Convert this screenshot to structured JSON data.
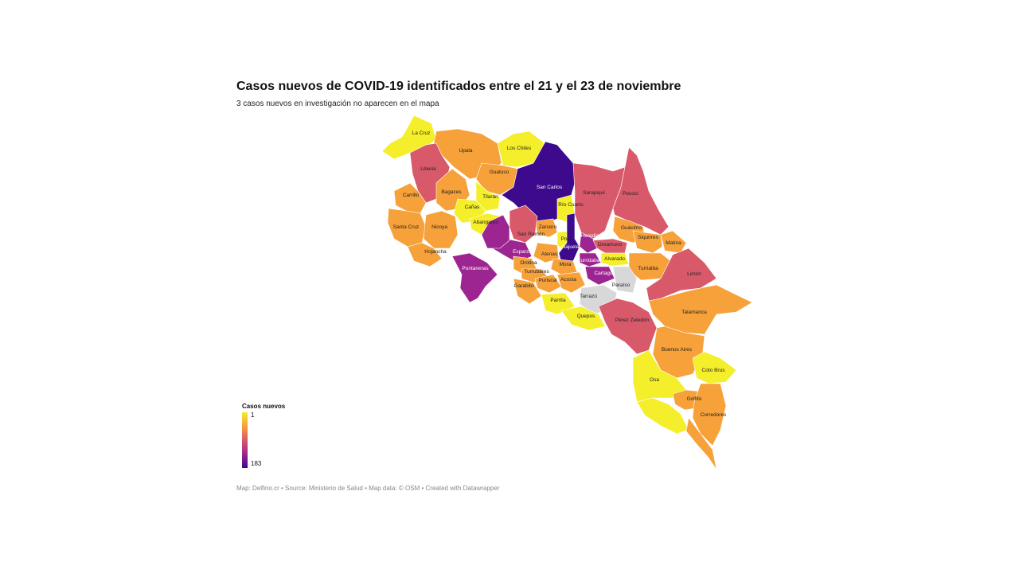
{
  "title": "Casos nuevos de COVID-19 identificados entre el 21 y el 23 de noviembre",
  "subtitle": "3 casos nuevos en investigación no aparecen en el mapa",
  "legend": {
    "title": "Casos nuevos",
    "min": "1",
    "max": "183"
  },
  "footer": "Map: Delfino.cr • Source: Ministerio de Salud • Map data: © OSM • Created with Datawrapper",
  "colors": {
    "low": "#f5ee2a",
    "mid": "#f6a13a",
    "high": "#d85a6a",
    "higher": "#9d2591",
    "max": "#3d0a8e",
    "nodata": "#d8d8d8"
  },
  "cantons": [
    {
      "name": "La Cruz",
      "level": "low"
    },
    {
      "name": "Upala",
      "level": "mid"
    },
    {
      "name": "Los Chiles",
      "level": "low"
    },
    {
      "name": "Liberia",
      "level": "high"
    },
    {
      "name": "Guatuso",
      "level": "mid"
    },
    {
      "name": "San Carlos",
      "level": "max"
    },
    {
      "name": "Sarapiquí",
      "level": "high"
    },
    {
      "name": "Pococí",
      "level": "high"
    },
    {
      "name": "Carrillo",
      "level": "mid"
    },
    {
      "name": "Bagaces",
      "level": "mid"
    },
    {
      "name": "Tilarán",
      "level": "low"
    },
    {
      "name": "Cañas",
      "level": "low"
    },
    {
      "name": "Río Cuarto",
      "level": "low"
    },
    {
      "name": "Santa Cruz",
      "level": "mid"
    },
    {
      "name": "Nicoya",
      "level": "mid"
    },
    {
      "name": "Abangares",
      "level": "low"
    },
    {
      "name": "Zarcero",
      "level": "mid"
    },
    {
      "name": "San Ramón",
      "level": "high"
    },
    {
      "name": "Guácimo",
      "level": "mid"
    },
    {
      "name": "Siquirres",
      "level": "mid"
    },
    {
      "name": "Matina",
      "level": "mid"
    },
    {
      "name": "Heredia",
      "level": "higher"
    },
    {
      "name": "Poás",
      "level": "low"
    },
    {
      "name": "Oreamuno",
      "level": "high"
    },
    {
      "name": "Hojancha",
      "level": "mid"
    },
    {
      "name": "Esparza",
      "level": "higher"
    },
    {
      "name": "Atenas",
      "level": "mid"
    },
    {
      "name": "Alajuela",
      "level": "max"
    },
    {
      "name": "Curridabat",
      "level": "higher"
    },
    {
      "name": "Alvarado",
      "level": "low"
    },
    {
      "name": "Turrialba",
      "level": "mid"
    },
    {
      "name": "Orotina",
      "level": "mid"
    },
    {
      "name": "Mora",
      "level": "mid"
    },
    {
      "name": "Puntarenas",
      "level": "higher"
    },
    {
      "name": "Turrubares",
      "level": "mid"
    },
    {
      "name": "Cartago",
      "level": "higher"
    },
    {
      "name": "Paraíso",
      "level": "nodata"
    },
    {
      "name": "Limón",
      "level": "high"
    },
    {
      "name": "Puriscal",
      "level": "mid"
    },
    {
      "name": "Acosta",
      "level": "mid"
    },
    {
      "name": "Garabito",
      "level": "mid"
    },
    {
      "name": "Tarrazú",
      "level": "nodata"
    },
    {
      "name": "Parrita",
      "level": "low"
    },
    {
      "name": "Talamanca",
      "level": "mid"
    },
    {
      "name": "Quepos",
      "level": "low"
    },
    {
      "name": "Pérez Zeledón",
      "level": "high"
    },
    {
      "name": "Buenos Aires",
      "level": "mid"
    },
    {
      "name": "Coto Brus",
      "level": "low"
    },
    {
      "name": "Osa",
      "level": "low"
    },
    {
      "name": "Golfito",
      "level": "mid"
    },
    {
      "name": "Corredores",
      "level": "mid"
    }
  ]
}
